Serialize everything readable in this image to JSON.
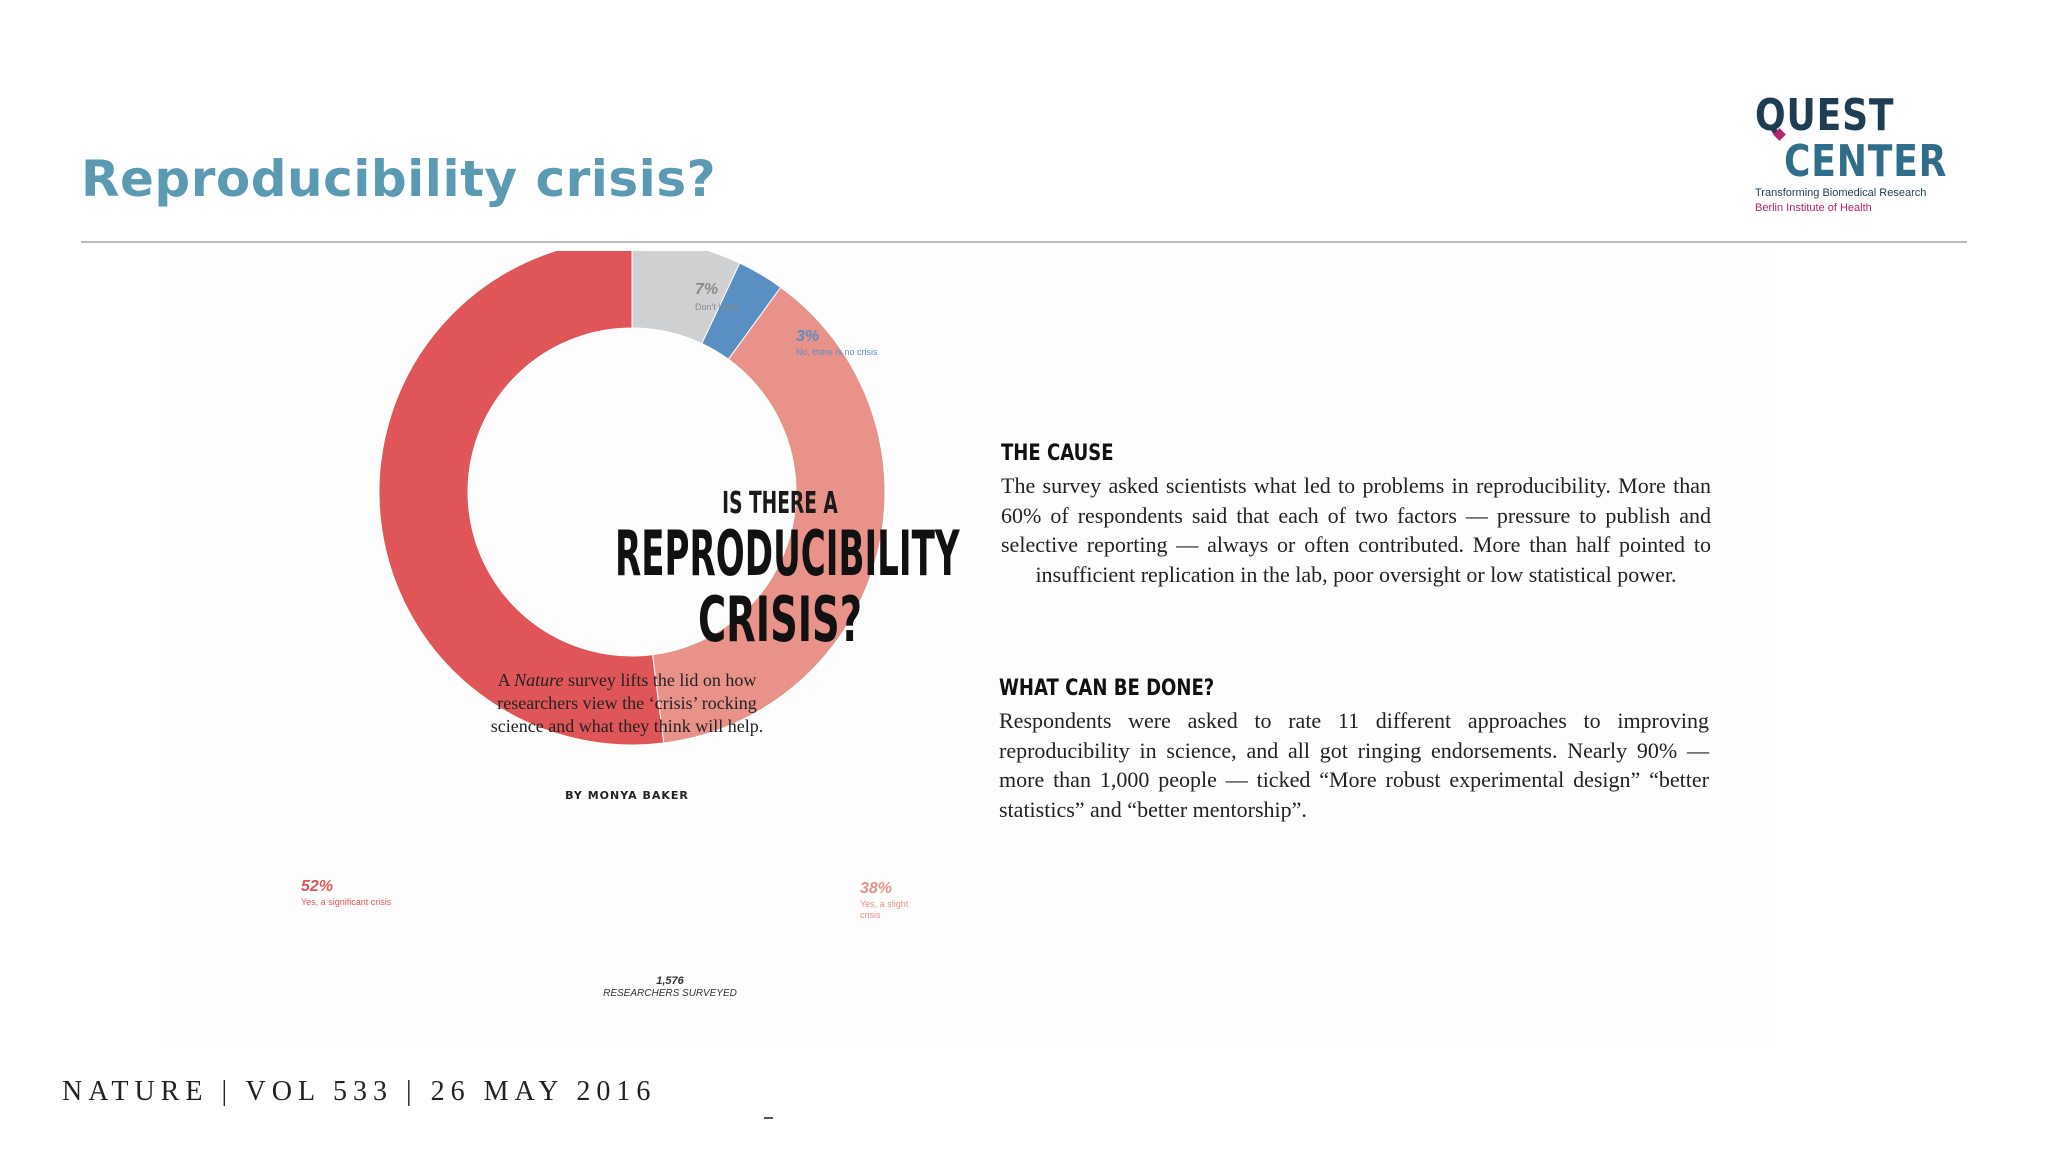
{
  "slide": {
    "title": "Reproducibility crisis?",
    "citation": "NATURE | VOL 533 | 26 MAY 2016"
  },
  "logo": {
    "line1": "QUEST",
    "line2": "CENTER",
    "tagline1": "Transforming Biomedical Research",
    "tagline2": "Berlin Institute of Health",
    "colors": {
      "dark": "#1f3d52",
      "accent": "#b4236b"
    }
  },
  "article": {
    "kicker": "IS THERE A",
    "headline_line1": "REPRODUCIBILITY",
    "headline_line2": "CRISIS?",
    "dek_prefix": "A ",
    "dek_italic": "Nature",
    "dek_rest": " survey lifts the lid on how researchers view the ‘crisis’ rocking science and what they think will help.",
    "byline": "BY MONYA BAKER",
    "cause": {
      "heading": "THE CAUSE",
      "body": "The survey asked scientists what led to problems in reproducibility. More than 60% of respondents said that each of two factors — pressure to publish and selective reporting — always or often contributed. More than half pointed to insufficient replication in the lab, poor oversight or low statistical power."
    },
    "remedy": {
      "heading": "WHAT CAN BE DONE?",
      "body": "Respondents were asked to rate 11 different approaches to improving reproducibility in science, and all got ringing endorsements. Nearly 90% — more than 1,000 people — ticked “More robust experimental design” “better statistics” and “better mentorship”."
    }
  },
  "chart_data": {
    "type": "pie",
    "subtype": "donut",
    "total": "1,576",
    "total_label": "RESEARCHERS SURVEYED",
    "slices": [
      {
        "label": "Don't know",
        "pct_label": "7%",
        "value": 7,
        "color": "#cfd0d2",
        "label_color": "#8a8a8a"
      },
      {
        "label": "No, there is no crisis",
        "pct_label": "3%",
        "value": 3,
        "color": "#5a8fc4",
        "label_color": "#5a8fc4"
      },
      {
        "label": "Yes, a slight crisis",
        "pct_label": "38%",
        "value": 38,
        "color": "#e8928a",
        "label_color": "#e8928a"
      },
      {
        "label": "Yes, a significant crisis",
        "pct_label": "52%",
        "value": 52,
        "color": "#e05558",
        "label_color": "#e05558"
      }
    ]
  }
}
